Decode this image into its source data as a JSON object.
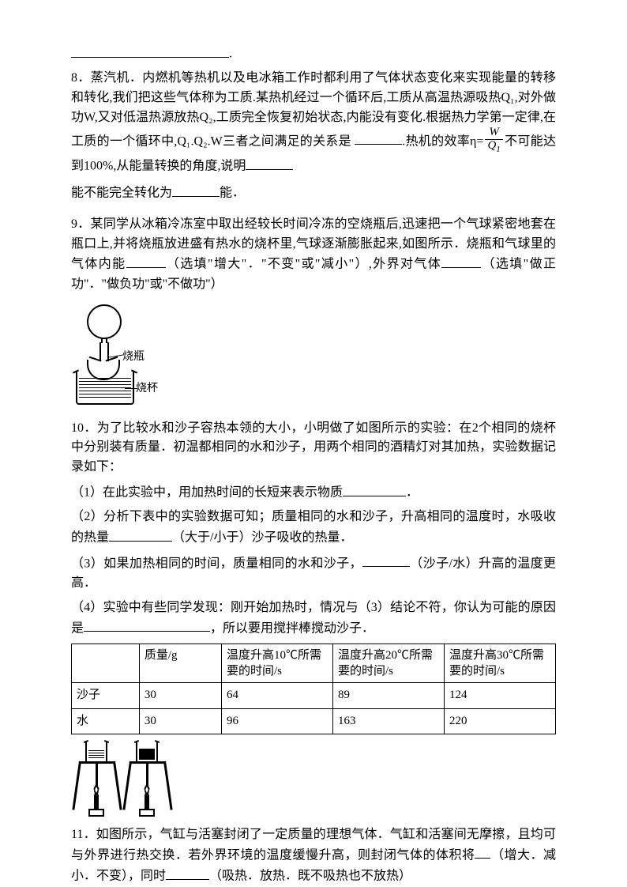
{
  "q7_tail": ".",
  "q8": {
    "num": "8",
    "text_a": "．蒸汽机．内燃机等热机以及电冰箱工作时都利用了气体状态变化来实现能量的转移和转化,我们把这些气体称为工质.某热机经过一个循环后,工质从高温热源吸热Q₁,对外做功W,又对低温热源放热Q₂,工质完全恢复初始状态,内能没有变化.根据热力学第一定律,在工质的一个循环中,Q₁.Q₂.W三者之间满足的关系是",
    "text_b": ".热机的效率η=",
    "frac_num": "W",
    "frac_den": "Q",
    "frac_den_sub": "1",
    "text_c": "不可能达到100%,从能量转换的角度,说明",
    "text_d": "能不能完全转化为",
    "text_e": "能．"
  },
  "q9": {
    "num": "9",
    "text": "．某同学从冰箱冷冻室中取出经较长时间冷冻的空烧瓶后,迅速把一个气球紧密地套在瓶口上,并将烧瓶放进盛有热水的烧杯里,气球逐渐膨胀起来,如图所示．烧瓶和气球里的气体内能",
    "hint1": "（选填\"增大\"．\"不变\"或\"减小\"）,外界对气体",
    "hint2": "（选填\"做正功\"．\"做负功\"或\"不做功\"）",
    "label_flask": "烧瓶",
    "label_beaker": "烧杯"
  },
  "q10": {
    "num": "10",
    "intro": "．为了比较水和沙子容热本领的大小，小明做了如图所示的实验：在2个相同的烧杯中分别装有质量．初温都相同的水和沙子，用两个相同的酒精灯对其加热，实验数据记录如下：",
    "p1": "（1）在此实验中，用加热时间的长短来表示物质",
    "p1_end": "．",
    "p2": "（2）分析下表中的实验数据可知；质量相同的水和沙子，升高相同的温度时，水吸收的热量",
    "p2_hint": "（大于/小于）沙子吸收的热量．",
    "p3": "（3）如果加热相同的时间，质量相同的水和沙子，",
    "p3_hint": "（沙子/水）升高的温度更高．",
    "p4": "（4）实验中有些同学发现：刚开始加热时，情况与（3）结论不符，你认为可能的原因是",
    "p4_end": "，所以要用搅拌棒搅动沙子．",
    "table": {
      "headers": [
        "",
        "质量/g",
        "温度升高10℃所需要的时间/s",
        "温度升高20℃所需要的时间/s",
        "温度升高30℃所需要的时间/s"
      ],
      "rows": [
        [
          "沙子",
          "30",
          "64",
          "89",
          "124"
        ],
        [
          "水",
          "30",
          "96",
          "163",
          "220"
        ]
      ],
      "col_widths": [
        "14%",
        "17%",
        "23%",
        "23%",
        "23%"
      ]
    }
  },
  "q11": {
    "num": "11",
    "text": "．如图所示，气缸与活塞封闭了一定质量的理想气体．气缸和活塞间无摩擦，且均可与外界进行热交换．若外界环境的温度缓慢升高，则封闭气体的体积将",
    "hint1": "（增大．减小．不变），同时",
    "hint2": "（吸热．放热．既不吸热也不放热）"
  }
}
